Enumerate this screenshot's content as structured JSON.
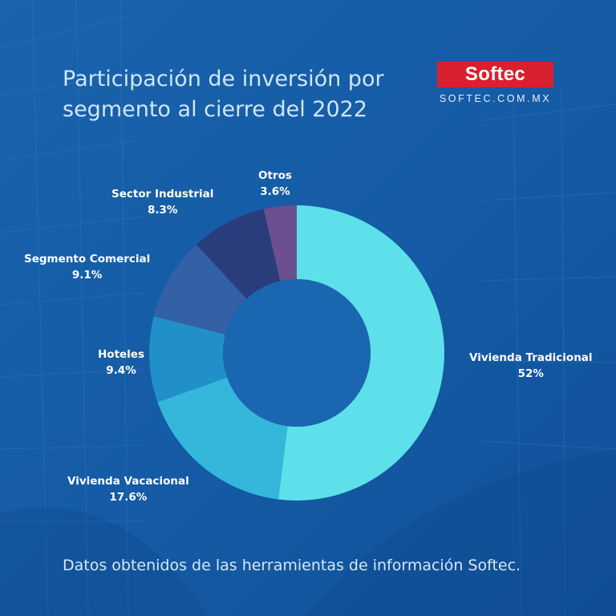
{
  "brand": {
    "logo_text": "Softec",
    "url_text": "SOFTEC.COM.MX"
  },
  "title": {
    "line1": "Participación de inversión por",
    "line2": "segmento al cierre del 2022"
  },
  "footnote": "Datos obtenidos de las herramientas de información Softec.",
  "colors": {
    "background": "#1660a8",
    "brand_red": "#d8202e"
  },
  "chart_data": {
    "type": "pie",
    "style": "donut",
    "title": "Participación de inversión por segmento al cierre del 2022",
    "unit": "%",
    "slices": [
      {
        "name": "Vivienda Tradicional",
        "value": 52,
        "label": "52%",
        "color": "#5de0ea"
      },
      {
        "name": "Vivienda Vacacional",
        "value": 17.6,
        "label": "17.6%",
        "color": "#35b7dc"
      },
      {
        "name": "Hoteles",
        "value": 9.4,
        "label": "9.4%",
        "color": "#2190c8"
      },
      {
        "name": "Segmento Comercial",
        "value": 9.1,
        "label": "9.1%",
        "color": "#3461a6"
      },
      {
        "name": "Sector Industrial",
        "value": 8.3,
        "label": "8.3%",
        "color": "#293d7c"
      },
      {
        "name": "Otros",
        "value": 3.6,
        "label": "3.6%",
        "color": "#6c4f8f"
      }
    ]
  }
}
